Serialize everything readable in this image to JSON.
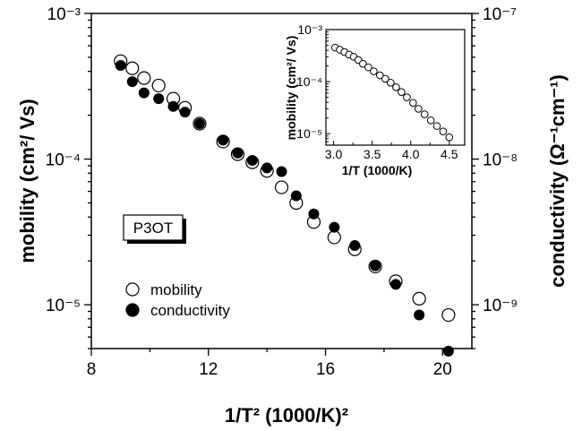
{
  "chart_data": [
    {
      "type": "scatter",
      "xlabel": "1/T² (1000/K)²",
      "ylabel": "mobility (cm²/ Vs)",
      "y2label": "conductivity (Ω⁻¹cm⁻¹)",
      "xlim": [
        8,
        21
      ],
      "xticks": [
        "8",
        "12",
        "16",
        "20"
      ],
      "ylim": [
        5e-06,
        0.001
      ],
      "yscale": "log",
      "yticks": [
        "10⁻⁵",
        "10⁻⁴",
        "10⁻³"
      ],
      "y2lim": [
        5e-10,
        1e-07
      ],
      "y2scale": "log",
      "y2ticks": [
        "10⁻⁹",
        "10⁻⁸",
        "10⁻⁷"
      ],
      "annotation": "P3OT",
      "legend_position": "bottom-left",
      "series": [
        {
          "name": "mobility",
          "marker": "open-circle",
          "axis": "left",
          "x": [
            9.0,
            9.4,
            9.8,
            10.3,
            10.8,
            11.2,
            11.7,
            12.5,
            13.0,
            13.5,
            14.0,
            14.5,
            15.0,
            15.6,
            16.3,
            17.0,
            17.7,
            18.4,
            19.2,
            20.2
          ],
          "y": [
            0.00047,
            0.00042,
            0.00036,
            0.00032,
            0.00026,
            0.000225,
            0.000175,
            0.000132,
            0.000108,
            9.5e-05,
            8.3e-05,
            6.4e-05,
            5e-05,
            3.7e-05,
            2.9e-05,
            2.4e-05,
            1.83e-05,
            1.45e-05,
            1.1e-05,
            8.5e-06
          ]
        },
        {
          "name": "conductivity",
          "marker": "filled-circle",
          "axis": "right",
          "x": [
            9.0,
            9.4,
            9.8,
            10.3,
            10.8,
            11.2,
            11.7,
            12.5,
            13.0,
            13.5,
            14.0,
            14.5,
            15.0,
            15.6,
            16.3,
            17.0,
            17.7,
            18.4,
            19.2,
            20.2
          ],
          "y": [
            4.4e-08,
            3.4e-08,
            2.85e-08,
            2.6e-08,
            2.3e-08,
            2.1e-08,
            1.75e-08,
            1.35e-08,
            1.1e-08,
            9.8e-09,
            8.7e-09,
            8.2e-09,
            5.6e-09,
            4.2e-09,
            3.4e-09,
            2.55e-09,
            1.85e-09,
            1.38e-09,
            8.5e-10,
            4.8e-10
          ]
        }
      ]
    },
    {
      "type": "scatter",
      "inset": true,
      "xlabel": "1/T (1000/K)",
      "ylabel": "mobility (cm²/ Vs)",
      "xlim": [
        2.9,
        4.7
      ],
      "xticks": [
        "3.0",
        "3.5",
        "4.0",
        "4.5"
      ],
      "ylim": [
        6e-06,
        0.001
      ],
      "yscale": "log",
      "yticks": [
        "10⁻⁵",
        "10⁻⁴",
        "10⁻³"
      ],
      "series": [
        {
          "marker": "open-circle",
          "x": [
            3.02,
            3.08,
            3.14,
            3.2,
            3.26,
            3.32,
            3.38,
            3.45,
            3.52,
            3.6,
            3.67,
            3.74,
            3.81,
            3.88,
            3.95,
            4.03,
            4.1,
            4.18,
            4.26,
            4.34,
            4.42,
            4.5
          ],
          "y": [
            0.00045,
            0.00041,
            0.00037,
            0.00033,
            0.0003,
            0.00026,
            0.00022,
            0.000188,
            0.000158,
            0.000132,
            0.000113,
            9.5e-05,
            7.8e-05,
            6.3e-05,
            5e-05,
            3.9e-05,
            3e-05,
            2.35e-05,
            1.8e-05,
            1.4e-05,
            1.1e-05,
            8.5e-06
          ]
        }
      ]
    }
  ]
}
